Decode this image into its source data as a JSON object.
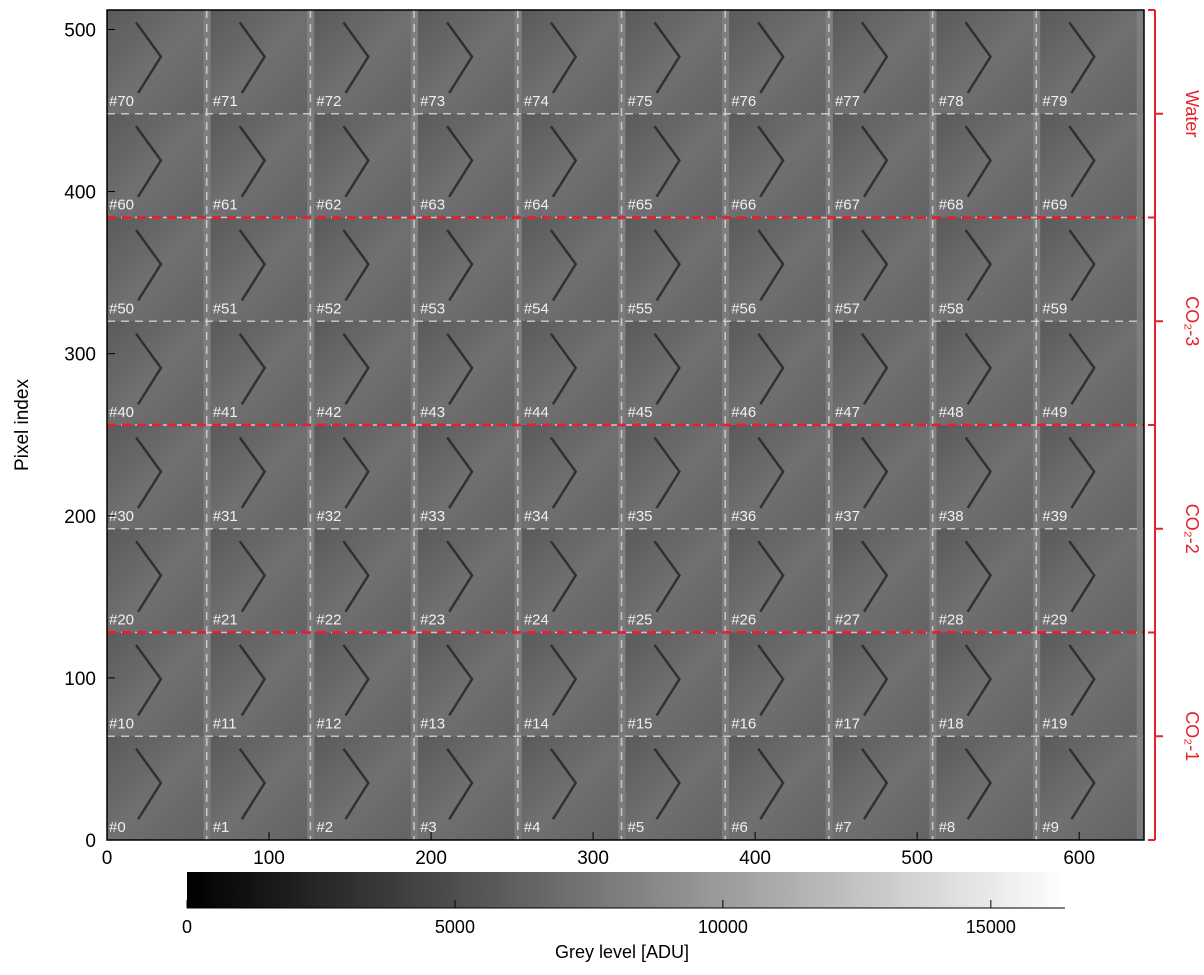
{
  "chart_data": {
    "type": "image",
    "ylabel": "Pixel index",
    "xlim": [
      0,
      640
    ],
    "ylim": [
      0,
      512
    ],
    "xticks": [
      0,
      100,
      200,
      300,
      400,
      500,
      600
    ],
    "yticks": [
      0,
      100,
      200,
      300,
      400,
      500
    ],
    "grid_columns": 10,
    "tiles": [
      "#0",
      "#1",
      "#2",
      "#3",
      "#4",
      "#5",
      "#6",
      "#7",
      "#8",
      "#9",
      "#10",
      "#11",
      "#12",
      "#13",
      "#14",
      "#15",
      "#16",
      "#17",
      "#18",
      "#19",
      "#20",
      "#21",
      "#22",
      "#23",
      "#24",
      "#25",
      "#26",
      "#27",
      "#28",
      "#29",
      "#30",
      "#31",
      "#32",
      "#33",
      "#34",
      "#35",
      "#36",
      "#37",
      "#38",
      "#39",
      "#40",
      "#41",
      "#42",
      "#43",
      "#44",
      "#45",
      "#46",
      "#47",
      "#48",
      "#49",
      "#50",
      "#51",
      "#52",
      "#53",
      "#54",
      "#55",
      "#56",
      "#57",
      "#58",
      "#59",
      "#60",
      "#61",
      "#62",
      "#63",
      "#64",
      "#65",
      "#66",
      "#67",
      "#68",
      "#69",
      "#70",
      "#71",
      "#72",
      "#73",
      "#74",
      "#75",
      "#76",
      "#77",
      "#78",
      "#79"
    ],
    "groups": [
      {
        "name": "CO₂-1",
        "range": [
          0,
          128
        ]
      },
      {
        "name": "CO₂-2",
        "range": [
          128,
          256
        ]
      },
      {
        "name": "CO₂-3",
        "range": [
          256,
          384
        ]
      },
      {
        "name": "Water",
        "range": [
          384,
          512
        ]
      }
    ],
    "group_color": "#e8202a",
    "colorbar": {
      "label": "Grey level [ADU]",
      "lim": [
        0,
        16384
      ],
      "ticks": [
        0,
        5000,
        10000,
        15000
      ]
    }
  }
}
